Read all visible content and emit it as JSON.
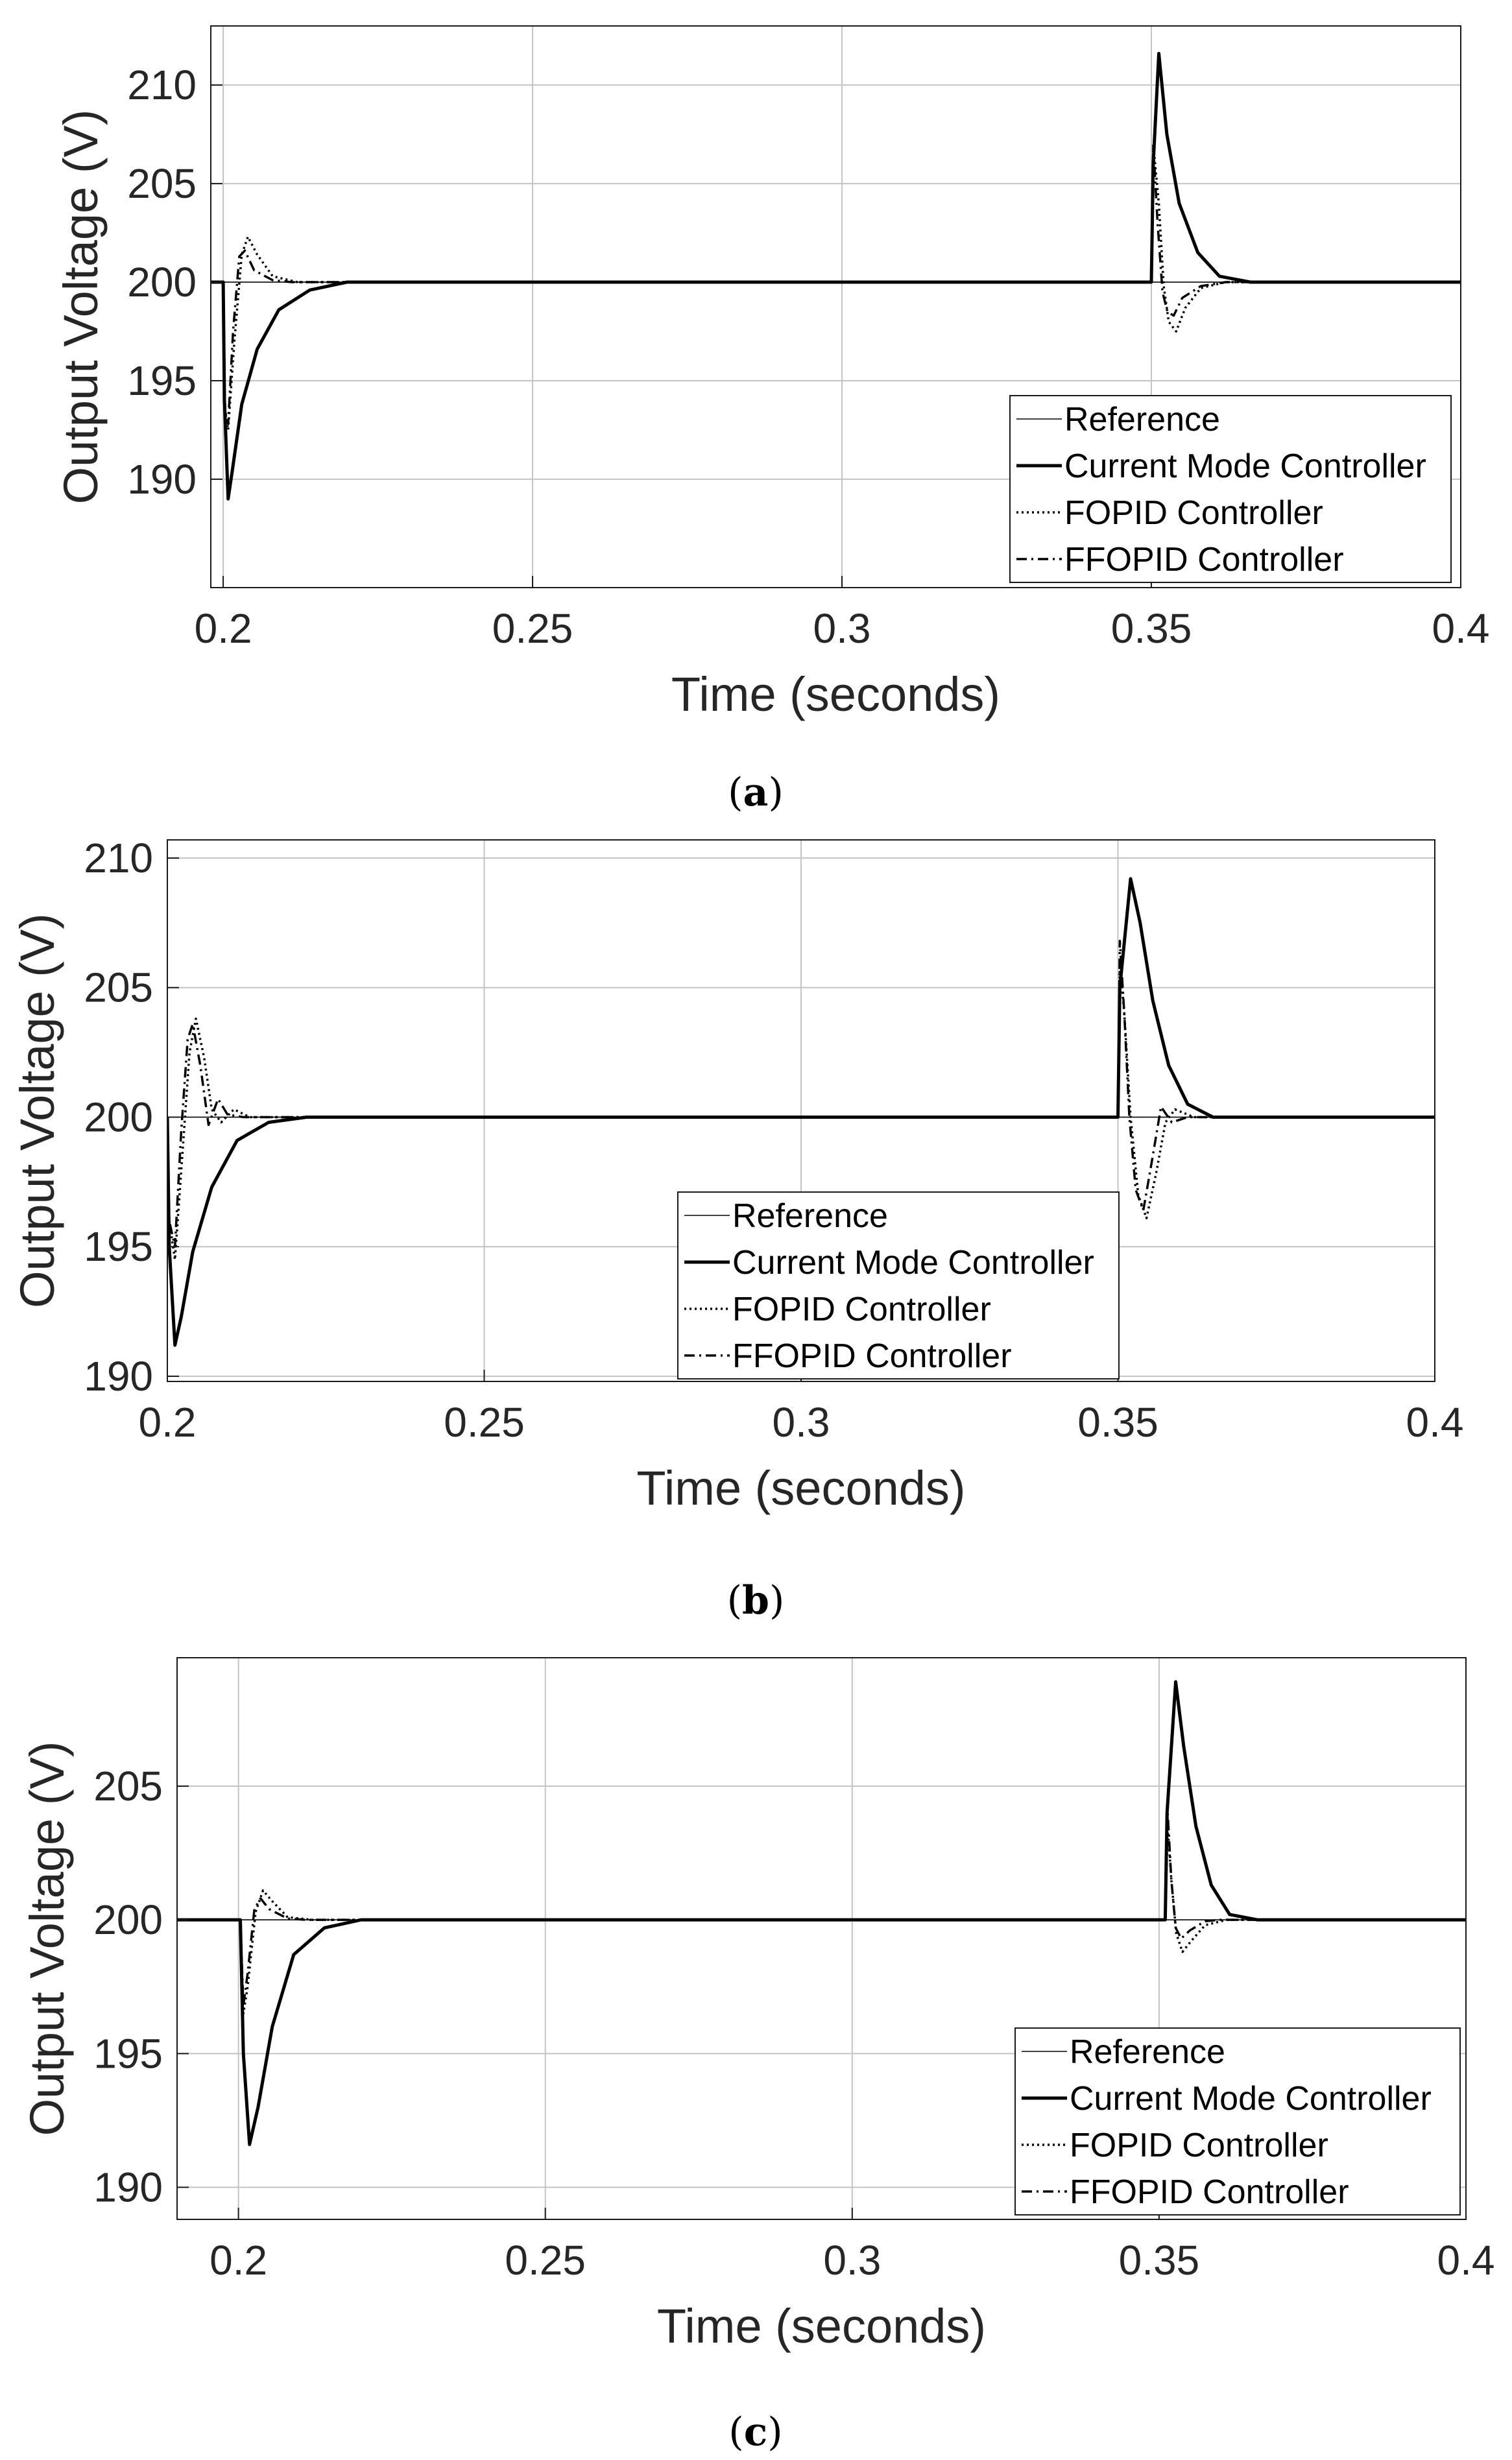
{
  "figure": {
    "panels": [
      {
        "id": "a",
        "caption_open": "(",
        "caption_letter": "a",
        "caption_close": ")"
      },
      {
        "id": "b",
        "caption_open": "(",
        "caption_letter": "b",
        "caption_close": ")"
      },
      {
        "id": "c",
        "caption_open": "(",
        "caption_letter": "c",
        "caption_close": ")"
      }
    ]
  },
  "chart_data": [
    {
      "type": "line",
      "panel": "a",
      "title": "",
      "xlabel": "Time (seconds)",
      "ylabel": "Output Voltage (V)",
      "xlim": [
        0.198,
        0.4
      ],
      "ylim": [
        184.5,
        213
      ],
      "xticks": [
        0.2,
        0.25,
        0.3,
        0.35,
        0.4
      ],
      "xtick_labels": [
        "0.2",
        "0.25",
        "0.3",
        "0.35",
        "0.4"
      ],
      "yticks": [
        190,
        195,
        200,
        205,
        210
      ],
      "ytick_labels": [
        "190",
        "195",
        "200",
        "205",
        "210"
      ],
      "grid": true,
      "legend_position": "bottom-right",
      "series": [
        {
          "name": "Reference",
          "style": "thin",
          "points": [
            [
              0.198,
              200
            ],
            [
              0.4,
              200
            ]
          ]
        },
        {
          "name": "Current Mode Controller",
          "style": "solid",
          "points": [
            [
              0.198,
              200
            ],
            [
              0.2,
              200
            ],
            [
              0.2002,
              194
            ],
            [
              0.2008,
              189
            ],
            [
              0.2015,
              190.5
            ],
            [
              0.203,
              193.8
            ],
            [
              0.2055,
              196.6
            ],
            [
              0.209,
              198.6
            ],
            [
              0.214,
              199.6
            ],
            [
              0.22,
              200
            ],
            [
              0.35,
              200
            ],
            [
              0.3503,
              206
            ],
            [
              0.3512,
              211.6
            ],
            [
              0.3525,
              207.5
            ],
            [
              0.3545,
              204
            ],
            [
              0.3575,
              201.5
            ],
            [
              0.361,
              200.3
            ],
            [
              0.366,
              200
            ],
            [
              0.4,
              200
            ]
          ]
        },
        {
          "name": "FOPID Controller",
          "style": "dotted",
          "points": [
            [
              0.198,
              200
            ],
            [
              0.2,
              200
            ],
            [
              0.2003,
              193.5
            ],
            [
              0.2008,
              192.5
            ],
            [
              0.2018,
              197
            ],
            [
              0.203,
              201.4
            ],
            [
              0.204,
              202.3
            ],
            [
              0.2055,
              201.4
            ],
            [
              0.208,
              200.3
            ],
            [
              0.212,
              200
            ],
            [
              0.35,
              200
            ],
            [
              0.3503,
              207
            ],
            [
              0.3512,
              204
            ],
            [
              0.352,
              199.8
            ],
            [
              0.3528,
              198
            ],
            [
              0.354,
              197.5
            ],
            [
              0.3555,
              198.7
            ],
            [
              0.358,
              199.7
            ],
            [
              0.362,
              200
            ],
            [
              0.4,
              200
            ]
          ]
        },
        {
          "name": "FFOPID Controller",
          "style": "dashdot",
          "points": [
            [
              0.198,
              200
            ],
            [
              0.2,
              200
            ],
            [
              0.2003,
              193.5
            ],
            [
              0.2008,
              192.8
            ],
            [
              0.2016,
              197.5
            ],
            [
              0.2026,
              201.3
            ],
            [
              0.2035,
              201.6
            ],
            [
              0.205,
              200.6
            ],
            [
              0.208,
              200.1
            ],
            [
              0.211,
              200
            ],
            [
              0.35,
              200
            ],
            [
              0.3503,
              207
            ],
            [
              0.351,
              203
            ],
            [
              0.3518,
              199.5
            ],
            [
              0.3526,
              198.5
            ],
            [
              0.3536,
              198.3
            ],
            [
              0.355,
              199.2
            ],
            [
              0.358,
              199.8
            ],
            [
              0.362,
              200
            ],
            [
              0.4,
              200
            ]
          ]
        }
      ]
    },
    {
      "type": "line",
      "panel": "b",
      "title": "",
      "xlabel": "Time (seconds)",
      "ylabel": "Output Voltage (V)",
      "xlim": [
        0.2,
        0.4
      ],
      "ylim": [
        189.8,
        210.7
      ],
      "xticks": [
        0.2,
        0.25,
        0.3,
        0.35,
        0.4
      ],
      "xtick_labels": [
        "0.2",
        "0.25",
        "0.3",
        "0.35",
        "0.4"
      ],
      "yticks": [
        190,
        195,
        200,
        205,
        210
      ],
      "ytick_labels": [
        "190",
        "195",
        "200",
        "205",
        "210"
      ],
      "grid": true,
      "legend_position": "bottom-center",
      "series": [
        {
          "name": "Reference",
          "style": "thin",
          "points": [
            [
              0.2,
              200
            ],
            [
              0.4,
              200
            ]
          ]
        },
        {
          "name": "Current Mode Controller",
          "style": "solid",
          "points": [
            [
              0.2,
              200
            ],
            [
              0.2003,
              195
            ],
            [
              0.2012,
              191.2
            ],
            [
              0.2022,
              192.3
            ],
            [
              0.204,
              194.8
            ],
            [
              0.207,
              197.3
            ],
            [
              0.211,
              199.1
            ],
            [
              0.216,
              199.8
            ],
            [
              0.222,
              200
            ],
            [
              0.35,
              200
            ],
            [
              0.3503,
              205
            ],
            [
              0.352,
              209.2
            ],
            [
              0.3535,
              207.5
            ],
            [
              0.3555,
              204.5
            ],
            [
              0.358,
              202
            ],
            [
              0.361,
              200.5
            ],
            [
              0.365,
              200
            ],
            [
              0.4,
              200
            ]
          ]
        },
        {
          "name": "FOPID Controller",
          "style": "dotted",
          "points": [
            [
              0.2,
              200
            ],
            [
              0.2003,
              196
            ],
            [
              0.2012,
              194.5
            ],
            [
              0.2025,
              199
            ],
            [
              0.2035,
              202.5
            ],
            [
              0.2045,
              203.8
            ],
            [
              0.2058,
              202.3
            ],
            [
              0.207,
              200.3
            ],
            [
              0.2085,
              199.8
            ],
            [
              0.2105,
              200.3
            ],
            [
              0.213,
              200
            ],
            [
              0.35,
              200
            ],
            [
              0.3503,
              206
            ],
            [
              0.351,
              204
            ],
            [
              0.352,
              200
            ],
            [
              0.3532,
              197
            ],
            [
              0.3545,
              196.1
            ],
            [
              0.356,
              197.8
            ],
            [
              0.3575,
              199.8
            ],
            [
              0.359,
              200.3
            ],
            [
              0.362,
              200
            ],
            [
              0.4,
              200
            ]
          ]
        },
        {
          "name": "FFOPID Controller",
          "style": "dashdot",
          "points": [
            [
              0.2,
              200
            ],
            [
              0.2003,
              196
            ],
            [
              0.2012,
              195
            ],
            [
              0.2022,
              199.5
            ],
            [
              0.2032,
              203
            ],
            [
              0.204,
              203.6
            ],
            [
              0.2052,
              202
            ],
            [
              0.2065,
              199.7
            ],
            [
              0.208,
              200.7
            ],
            [
              0.2095,
              200.1
            ],
            [
              0.212,
              200
            ],
            [
              0.35,
              200
            ],
            [
              0.3503,
              206.8
            ],
            [
              0.351,
              204
            ],
            [
              0.3518,
              200
            ],
            [
              0.3528,
              197.2
            ],
            [
              0.354,
              196.4
            ],
            [
              0.3555,
              198.5
            ],
            [
              0.3568,
              200.4
            ],
            [
              0.3585,
              199.8
            ],
            [
              0.361,
              200
            ],
            [
              0.4,
              200
            ]
          ]
        }
      ]
    },
    {
      "type": "line",
      "panel": "c",
      "title": "",
      "xlabel": "Time (seconds)",
      "ylabel": "Output Voltage (V)",
      "xlim": [
        0.19,
        0.4
      ],
      "ylim": [
        188.8,
        209.8
      ],
      "xticks": [
        0.2,
        0.25,
        0.3,
        0.35,
        0.4
      ],
      "xtick_labels": [
        "0.2",
        "0.25",
        "0.3",
        "0.35",
        "0.4"
      ],
      "yticks": [
        190,
        195,
        200,
        205
      ],
      "ytick_labels": [
        "190",
        "195",
        "200",
        "205"
      ],
      "grid": true,
      "legend_position": "bottom-right",
      "series": [
        {
          "name": "Reference",
          "style": "thin",
          "points": [
            [
              0.19,
              200
            ],
            [
              0.4,
              200
            ]
          ]
        },
        {
          "name": "Current Mode Controller",
          "style": "solid",
          "points": [
            [
              0.19,
              200
            ],
            [
              0.2003,
              200
            ],
            [
              0.2008,
              195
            ],
            [
              0.2018,
              191.6
            ],
            [
              0.2032,
              193
            ],
            [
              0.2055,
              196
            ],
            [
              0.209,
              198.7
            ],
            [
              0.214,
              199.7
            ],
            [
              0.22,
              200
            ],
            [
              0.351,
              200
            ],
            [
              0.3513,
              204
            ],
            [
              0.3527,
              208.9
            ],
            [
              0.354,
              206.5
            ],
            [
              0.356,
              203.5
            ],
            [
              0.3585,
              201.3
            ],
            [
              0.3615,
              200.2
            ],
            [
              0.366,
              200
            ],
            [
              0.4,
              200
            ]
          ]
        },
        {
          "name": "FOPID Controller",
          "style": "dotted",
          "points": [
            [
              0.19,
              200
            ],
            [
              0.2003,
              200
            ],
            [
              0.2008,
              196.5
            ],
            [
              0.2015,
              197.5
            ],
            [
              0.2028,
              200.3
            ],
            [
              0.204,
              201.1
            ],
            [
              0.2055,
              200.7
            ],
            [
              0.208,
              200.1
            ],
            [
              0.212,
              200
            ],
            [
              0.351,
              200
            ],
            [
              0.3514,
              203.5
            ],
            [
              0.352,
              201.5
            ],
            [
              0.3528,
              199.5
            ],
            [
              0.3538,
              198.8
            ],
            [
              0.3552,
              199.2
            ],
            [
              0.3575,
              199.8
            ],
            [
              0.361,
              200
            ],
            [
              0.4,
              200
            ]
          ]
        },
        {
          "name": "FFOPID Controller",
          "style": "dashdot",
          "points": [
            [
              0.19,
              200
            ],
            [
              0.2003,
              200
            ],
            [
              0.2008,
              196.8
            ],
            [
              0.2015,
              198
            ],
            [
              0.2026,
              200.4
            ],
            [
              0.2036,
              200.8
            ],
            [
              0.205,
              200.4
            ],
            [
              0.208,
              200.05
            ],
            [
              0.211,
              200
            ],
            [
              0.351,
              200
            ],
            [
              0.3514,
              204
            ],
            [
              0.352,
              201.5
            ],
            [
              0.3527,
              199.7
            ],
            [
              0.3536,
              199.3
            ],
            [
              0.355,
              199.6
            ],
            [
              0.3575,
              199.95
            ],
            [
              0.36,
              200
            ],
            [
              0.4,
              200
            ]
          ]
        }
      ]
    }
  ]
}
